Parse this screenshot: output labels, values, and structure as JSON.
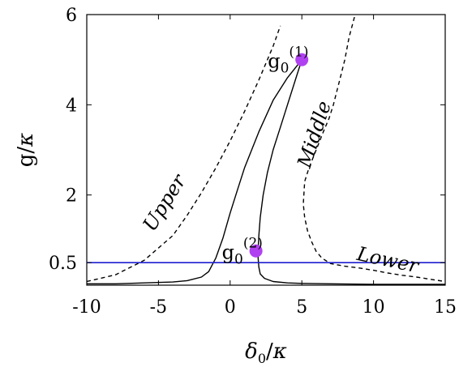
{
  "chart_data": {
    "type": "line",
    "xlabel": "δ0/κ",
    "ylabel": "g/κ",
    "xlim": [
      -10,
      15
    ],
    "ylim": [
      0,
      6
    ],
    "xticks": [
      -10,
      -5,
      0,
      5,
      10,
      15
    ],
    "xtick_labels": [
      "-10",
      "-5",
      "0",
      "5",
      "10",
      "15"
    ],
    "yticks": [
      0.5,
      2,
      4,
      6
    ],
    "ytick_labels": [
      "0.5",
      "2",
      "4",
      "6"
    ],
    "grid": false,
    "series": [
      {
        "style": "dashed",
        "color": "#000000",
        "x": [
          -10,
          -8,
          -6,
          -4,
          -3,
          -2,
          -1,
          0,
          1,
          2,
          3,
          3.5
        ],
        "y": [
          0.08,
          0.23,
          0.55,
          1.1,
          1.55,
          2.05,
          2.6,
          3.2,
          3.85,
          4.55,
          5.3,
          5.75
        ]
      },
      {
        "style": "dashed",
        "color": "#000000",
        "x": [
          8.8,
          8.3,
          8.0,
          7.6,
          7.2,
          6.9,
          6.5,
          6.0,
          5.5,
          5.2,
          5.1,
          5.2,
          5.4,
          5.7,
          6.0,
          6.4,
          7.0,
          8.0,
          9.0,
          10.0,
          11.0,
          12.0,
          13.0,
          14.0,
          15.0
        ],
        "y": [
          6.1,
          5.5,
          5.0,
          4.5,
          4.0,
          3.7,
          3.4,
          3.0,
          2.6,
          2.3,
          1.8,
          1.5,
          1.2,
          0.95,
          0.75,
          0.6,
          0.48,
          0.42,
          0.38,
          0.33,
          0.27,
          0.22,
          0.18,
          0.13,
          0.08
        ]
      },
      {
        "style": "solid",
        "color": "#000000",
        "x": [
          -10,
          -8,
          -6,
          -4,
          -3,
          -2,
          -1.5,
          -1,
          -0.5,
          0,
          0.5,
          1,
          2,
          3,
          4,
          5
        ],
        "y": [
          0.03,
          0.03,
          0.05,
          0.07,
          0.1,
          0.18,
          0.3,
          0.6,
          1.05,
          1.6,
          2.1,
          2.6,
          3.4,
          4.1,
          4.6,
          5.0
        ]
      },
      {
        "style": "solid",
        "color": "#000000",
        "x": [
          5,
          4.6,
          4,
          3.5,
          3,
          2.6,
          2.3,
          2.1,
          2.0,
          1.95,
          1.95,
          2.0,
          2.1,
          2.4,
          3,
          4,
          5,
          7,
          10,
          15
        ],
        "y": [
          5.0,
          4.6,
          4.0,
          3.5,
          3.0,
          2.5,
          2.0,
          1.5,
          1.1,
          0.8,
          0.6,
          0.4,
          0.25,
          0.15,
          0.08,
          0.05,
          0.04,
          0.03,
          0.02,
          0.02
        ]
      },
      {
        "style": "solid",
        "color": "#1f1fcf",
        "x": [
          -10,
          15
        ],
        "y": [
          0.5,
          0.5
        ]
      }
    ],
    "points": [
      {
        "x": 5,
        "y": 5.0,
        "color": "#b041f0",
        "label": "g0",
        "sup": "(1)"
      },
      {
        "x": 1.8,
        "y": 0.76,
        "color": "#b041f0",
        "label": "g0",
        "sup": "(2)"
      }
    ],
    "annotations": [
      {
        "text": "Upper",
        "x": -4.2,
        "y": 1.75,
        "angle": -58
      },
      {
        "text": "Middle",
        "x": 6.3,
        "y": 3.3,
        "angle": -72
      },
      {
        "text": "Lower",
        "x": 10.9,
        "y": 0.42,
        "angle": 12
      }
    ]
  }
}
